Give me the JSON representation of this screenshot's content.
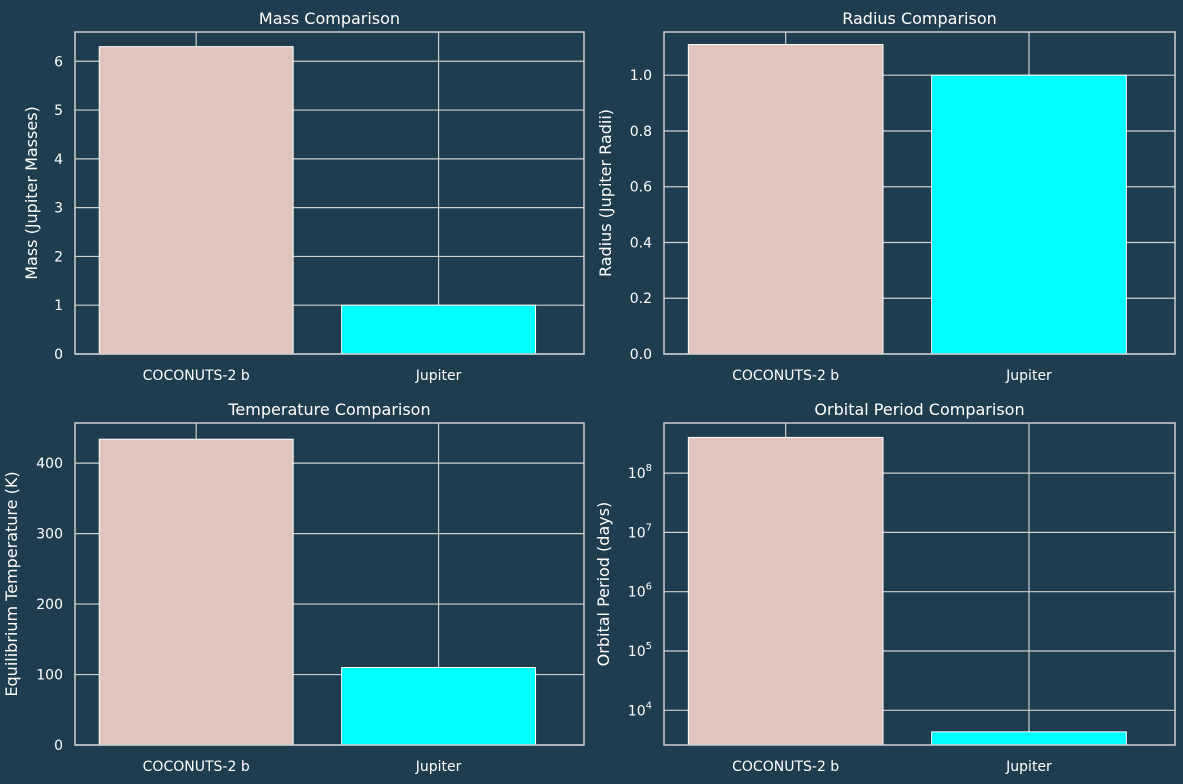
{
  "colors": {
    "background": "#1f3d4e",
    "grid": "#cfcfcf",
    "text": "#ffffff",
    "bar_coconuts": "#e0c5bc",
    "bar_jupiter": "#00ffff"
  },
  "chart_data": [
    {
      "id": "mass",
      "type": "bar",
      "title": "Mass Comparison",
      "xlabel": "",
      "ylabel": "Mass (Jupiter Masses)",
      "categories": [
        "COCONUTS-2 b",
        "Jupiter"
      ],
      "values": [
        6.3,
        1.0
      ],
      "ylim": [
        0,
        6.6
      ],
      "yscale": "linear",
      "yticks": [
        0,
        1,
        2,
        3,
        4,
        5,
        6
      ],
      "ytick_labels": [
        "0",
        "1",
        "2",
        "3",
        "4",
        "5",
        "6"
      ]
    },
    {
      "id": "radius",
      "type": "bar",
      "title": "Radius Comparison",
      "xlabel": "",
      "ylabel": "Radius (Jupiter Radii)",
      "categories": [
        "COCONUTS-2 b",
        "Jupiter"
      ],
      "values": [
        1.11,
        1.0
      ],
      "ylim": [
        0,
        1.155
      ],
      "yscale": "linear",
      "yticks": [
        0,
        0.2,
        0.4,
        0.6,
        0.8,
        1.0
      ],
      "ytick_labels": [
        "0.0",
        "0.2",
        "0.4",
        "0.6",
        "0.8",
        "1.0"
      ]
    },
    {
      "id": "temperature",
      "type": "bar",
      "title": "Temperature Comparison",
      "xlabel": "",
      "ylabel": "Equilibrium Temperature (K)",
      "categories": [
        "COCONUTS-2 b",
        "Jupiter"
      ],
      "values": [
        434,
        110
      ],
      "ylim": [
        0,
        457
      ],
      "yscale": "linear",
      "yticks": [
        0,
        100,
        200,
        300,
        400
      ],
      "ytick_labels": [
        "0",
        "100",
        "200",
        "300",
        "400"
      ]
    },
    {
      "id": "period",
      "type": "bar",
      "title": "Orbital Period Comparison",
      "xlabel": "",
      "ylabel": "Orbital Period (days)",
      "categories": [
        "COCONUTS-2 b",
        "Jupiter"
      ],
      "values": [
        400000000,
        4333
      ],
      "ylim": [
        2600,
        700000000
      ],
      "yscale": "log",
      "yticks": [
        10000,
        100000,
        1000000,
        10000000,
        100000000
      ],
      "ytick_labels": [
        {
          "base": "10",
          "exp": "4"
        },
        {
          "base": "10",
          "exp": "5"
        },
        {
          "base": "10",
          "exp": "6"
        },
        {
          "base": "10",
          "exp": "7"
        },
        {
          "base": "10",
          "exp": "8"
        }
      ]
    }
  ]
}
